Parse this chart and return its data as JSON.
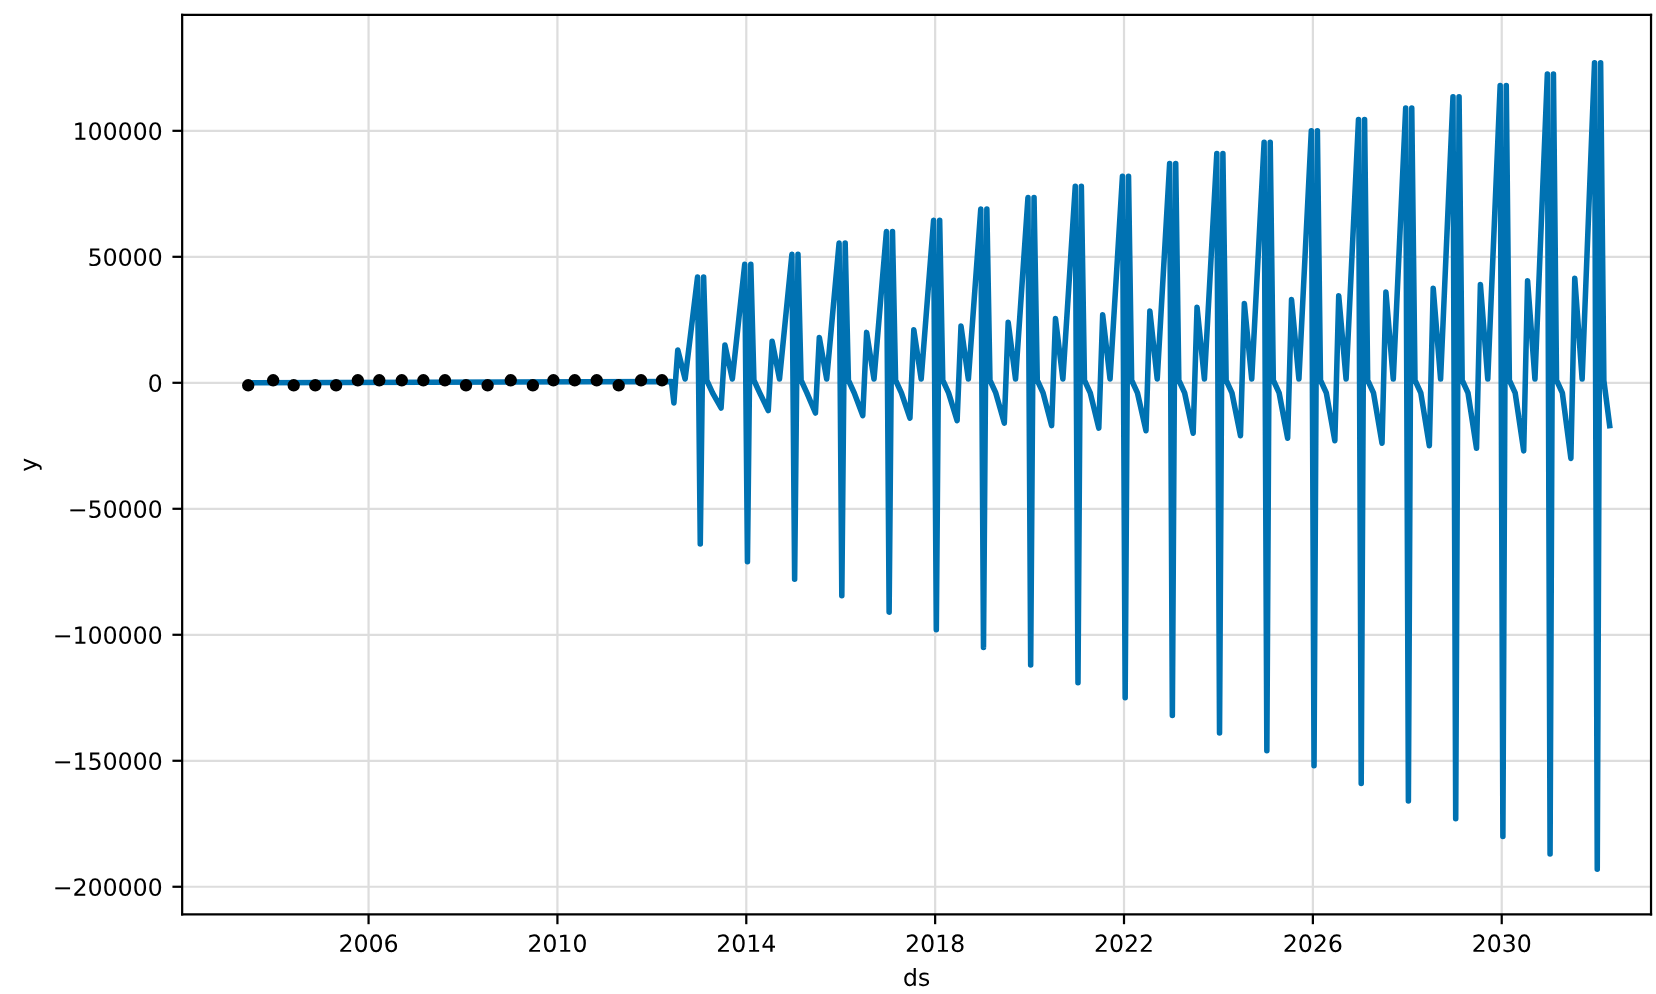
{
  "chart_data": {
    "type": "line",
    "xlabel": "ds",
    "ylabel": "y",
    "xlim": [
      "2002-01-20",
      "2033-03-01"
    ],
    "ylim": [
      -211000,
      146000
    ],
    "xticks": [
      {
        "value": "2006-01-01",
        "label": "2006"
      },
      {
        "value": "2010-01-01",
        "label": "2010"
      },
      {
        "value": "2014-01-01",
        "label": "2014"
      },
      {
        "value": "2018-01-01",
        "label": "2018"
      },
      {
        "value": "2022-01-01",
        "label": "2022"
      },
      {
        "value": "2026-01-01",
        "label": "2026"
      },
      {
        "value": "2030-01-01",
        "label": "2030"
      }
    ],
    "yticks": [
      -200000,
      -150000,
      -100000,
      -50000,
      0,
      50000,
      100000
    ],
    "grid": true,
    "series": [
      {
        "color": "#0072b2",
        "marker": "none",
        "x": [
          "2003-06-15",
          "2012-06-01",
          "2012-06-20",
          "2012-07-20",
          "2012-09-15",
          "2012-12-20",
          "2013-01-10",
          "2013-02-05",
          "2013-03-01",
          "2013-04-15",
          "2013-06-20",
          "2013-07-20",
          "2013-09-15",
          "2013-12-20",
          "2014-01-10",
          "2014-02-05",
          "2014-03-01",
          "2014-04-15",
          "2014-06-20",
          "2014-07-20",
          "2014-09-15",
          "2014-12-20",
          "2015-01-10",
          "2015-02-05",
          "2015-03-01",
          "2015-04-15",
          "2015-06-20",
          "2015-07-20",
          "2015-09-15",
          "2015-12-20",
          "2016-01-10",
          "2016-02-05",
          "2016-03-01",
          "2016-04-15",
          "2016-06-20",
          "2016-07-20",
          "2016-09-15",
          "2016-12-20",
          "2017-01-10",
          "2017-02-05",
          "2017-03-01",
          "2017-04-15",
          "2017-06-20",
          "2017-07-20",
          "2017-09-15",
          "2017-12-20",
          "2018-01-10",
          "2018-02-05",
          "2018-03-01",
          "2018-04-15",
          "2018-06-20",
          "2018-07-20",
          "2018-09-15",
          "2018-12-20",
          "2019-01-10",
          "2019-02-05",
          "2019-03-01",
          "2019-04-15",
          "2019-06-20",
          "2019-07-20",
          "2019-09-15",
          "2019-12-20",
          "2020-01-10",
          "2020-02-05",
          "2020-03-01",
          "2020-04-15",
          "2020-06-20",
          "2020-07-20",
          "2020-09-15",
          "2020-12-20",
          "2021-01-10",
          "2021-02-05",
          "2021-03-01",
          "2021-04-15",
          "2021-06-20",
          "2021-07-20",
          "2021-09-15",
          "2021-12-20",
          "2022-01-10",
          "2022-02-05",
          "2022-03-01",
          "2022-04-15",
          "2022-06-20",
          "2022-07-20",
          "2022-09-15",
          "2022-12-20",
          "2023-01-10",
          "2023-02-05",
          "2023-03-01",
          "2023-04-15",
          "2023-06-20",
          "2023-07-20",
          "2023-09-15",
          "2023-12-20",
          "2024-01-10",
          "2024-02-05",
          "2024-03-01",
          "2024-04-15",
          "2024-06-20",
          "2024-07-20",
          "2024-09-15",
          "2024-12-20",
          "2025-01-10",
          "2025-02-05",
          "2025-03-01",
          "2025-04-15",
          "2025-06-20",
          "2025-07-20",
          "2025-09-15",
          "2025-12-20",
          "2026-01-10",
          "2026-02-05",
          "2026-03-01",
          "2026-04-15",
          "2026-06-20",
          "2026-07-20",
          "2026-09-15",
          "2026-12-20",
          "2027-01-10",
          "2027-02-05",
          "2027-03-01",
          "2027-04-15",
          "2027-06-20",
          "2027-07-20",
          "2027-09-15",
          "2027-12-20",
          "2028-01-10",
          "2028-02-05",
          "2028-03-01",
          "2028-04-15",
          "2028-06-20",
          "2028-07-20",
          "2028-09-15",
          "2028-12-20",
          "2029-01-10",
          "2029-02-05",
          "2029-03-01",
          "2029-04-15",
          "2029-06-20",
          "2029-07-20",
          "2029-09-15",
          "2029-12-20",
          "2030-01-10",
          "2030-02-05",
          "2030-03-01",
          "2030-04-15",
          "2030-06-20",
          "2030-07-20",
          "2030-09-15",
          "2030-12-20",
          "2031-01-10",
          "2031-02-05",
          "2031-03-01",
          "2031-04-15",
          "2031-06-20",
          "2031-07-20",
          "2031-09-15",
          "2031-12-20",
          "2032-01-10",
          "2032-02-05",
          "2032-03-01",
          "2032-04-15"
        ],
        "values": [
          0,
          500,
          -8000,
          13000,
          1500,
          42000,
          -64000,
          42000,
          1000,
          -4000,
          -10000,
          15000,
          1500,
          47000,
          -71000,
          47000,
          1000,
          -4000,
          -11000,
          16500,
          1500,
          51000,
          -78000,
          51000,
          1000,
          -4000,
          -12000,
          18000,
          1500,
          55500,
          -84500,
          55500,
          1000,
          -4000,
          -13000,
          20000,
          1500,
          60000,
          -91000,
          60000,
          1000,
          -4000,
          -14000,
          21000,
          1500,
          64500,
          -98000,
          64500,
          1000,
          -4000,
          -15000,
          22500,
          1500,
          69000,
          -105000,
          69000,
          1000,
          -4000,
          -16000,
          24000,
          1500,
          73500,
          -112000,
          73500,
          1000,
          -4000,
          -17000,
          25500,
          1500,
          78000,
          -119000,
          78000,
          1000,
          -4000,
          -18000,
          27000,
          1500,
          82000,
          -125000,
          82000,
          1000,
          -4000,
          -19000,
          28500,
          1500,
          87000,
          -132000,
          87000,
          1000,
          -4000,
          -20000,
          30000,
          1500,
          91000,
          -139000,
          91000,
          1000,
          -4000,
          -21000,
          31500,
          1500,
          95500,
          -146000,
          95500,
          1000,
          -4000,
          -22000,
          33000,
          1500,
          100000,
          -152000,
          100000,
          1000,
          -4000,
          -23000,
          34500,
          1500,
          104500,
          -159000,
          104500,
          1000,
          -4000,
          -24000,
          36000,
          1500,
          109000,
          -166000,
          109000,
          1000,
          -4000,
          -25000,
          37500,
          1500,
          113500,
          -173000,
          113500,
          1000,
          -4000,
          -26000,
          39000,
          1500,
          118000,
          -180000,
          118000,
          1000,
          -4000,
          -27000,
          40500,
          1500,
          122500,
          -187000,
          122500,
          1000,
          -4000,
          -30000,
          41500,
          1500,
          127000,
          -193000,
          127000,
          1000,
          -17000
        ]
      },
      {
        "type": "scatter",
        "color": "#000000",
        "marker": "circle",
        "x": [
          "2003-06-15",
          "2003-12-25",
          "2004-06-01",
          "2004-11-15",
          "2005-04-25",
          "2005-10-10",
          "2006-03-25",
          "2006-09-15",
          "2007-03-01",
          "2007-08-15",
          "2008-01-25",
          "2008-07-10",
          "2009-01-05",
          "2009-06-25",
          "2009-12-01",
          "2010-05-15",
          "2010-11-01",
          "2011-04-20",
          "2011-10-10",
          "2012-03-20"
        ],
        "values": [
          -1000,
          1000,
          -1000,
          -1000,
          -1000,
          1000,
          1000,
          1000,
          1000,
          1000,
          -1000,
          -1000,
          1000,
          -1000,
          1000,
          1000,
          1000,
          -1000,
          1000,
          1000
        ]
      }
    ]
  }
}
